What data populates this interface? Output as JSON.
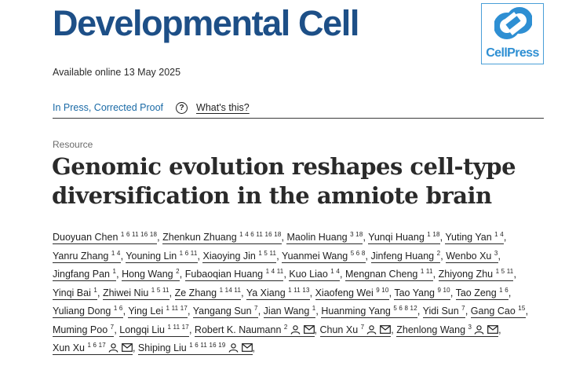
{
  "journal": {
    "title": "Developmental Cell",
    "publisher_logo_text": "CellPress",
    "brand_color": "#1d4f87",
    "logo_color": "#2e8fd3"
  },
  "availability": "Available online 13 May 2025",
  "status": {
    "label": "In Press, Corrected Proof",
    "help_icon": "question-circle-icon",
    "help_link": "What's this?"
  },
  "article": {
    "type": "Resource",
    "title": "Genomic evolution reshapes cell-type diversification in the amniote brain"
  },
  "authors": [
    {
      "name": "Duoyuan Chen",
      "aff": "1 6 11 16 18"
    },
    {
      "name": "Zhenkun Zhuang",
      "aff": "1 4 6 11 16 18"
    },
    {
      "name": "Maolin Huang",
      "aff": "3 18"
    },
    {
      "name": "Yunqi Huang",
      "aff": "1 18"
    },
    {
      "name": "Yuting Yan",
      "aff": "1 4"
    },
    {
      "name": "Yanru Zhang",
      "aff": "1 4"
    },
    {
      "name": "Youning Lin",
      "aff": "1 6 11"
    },
    {
      "name": "Xiaoying Jin",
      "aff": "1 5 11"
    },
    {
      "name": "Yuanmei Wang",
      "aff": "5 6 8"
    },
    {
      "name": "Jinfeng Huang",
      "aff": "2"
    },
    {
      "name": "Wenbo Xu",
      "aff": "3"
    },
    {
      "name": "Jingfang Pan",
      "aff": "1"
    },
    {
      "name": "Hong Wang",
      "aff": "2"
    },
    {
      "name": "Fubaoqian Huang",
      "aff": "1 4 11"
    },
    {
      "name": "Kuo Liao",
      "aff": "1 4"
    },
    {
      "name": "Mengnan Cheng",
      "aff": "1 11"
    },
    {
      "name": "Zhiyong Zhu",
      "aff": "1 5 11"
    },
    {
      "name": "Yinqi Bai",
      "aff": "1"
    },
    {
      "name": "Zhiwei Niu",
      "aff": "1 5 11"
    },
    {
      "name": "Ze Zhang",
      "aff": "1 14 11"
    },
    {
      "name": "Ya Xiang",
      "aff": "1 11 13"
    },
    {
      "name": "Xiaofeng Wei",
      "aff": "9 10"
    },
    {
      "name": "Tao Yang",
      "aff": "9 10"
    },
    {
      "name": "Tao Zeng",
      "aff": "1 6"
    },
    {
      "name": "Yuliang Dong",
      "aff": "1 6"
    },
    {
      "name": "Ying Lei",
      "aff": "1 11 17"
    },
    {
      "name": "Yangang Sun",
      "aff": "7"
    },
    {
      "name": "Jian Wang",
      "aff": "1"
    },
    {
      "name": "Huanming Yang",
      "aff": "5 6 8 12"
    },
    {
      "name": "Yidi Sun",
      "aff": "7"
    },
    {
      "name": "Gang Cao",
      "aff": "15"
    },
    {
      "name": "Muming Poo",
      "aff": "7"
    },
    {
      "name": "Longqi Liu",
      "aff": "1 11 17"
    },
    {
      "name": "Robert K. Naumann",
      "aff": "2",
      "corresponding": true
    },
    {
      "name": "Chun Xu",
      "aff": "7",
      "corresponding": true
    },
    {
      "name": "Zhenlong Wang",
      "aff": "3",
      "corresponding": true
    },
    {
      "name": "Xun Xu",
      "aff": "1 6 17",
      "corresponding": true
    },
    {
      "name": "Shiping Liu",
      "aff": "1 6 11 16 19",
      "corresponding": true
    }
  ],
  "author_icons": [
    "person-icon",
    "envelope-icon"
  ],
  "separator": ","
}
